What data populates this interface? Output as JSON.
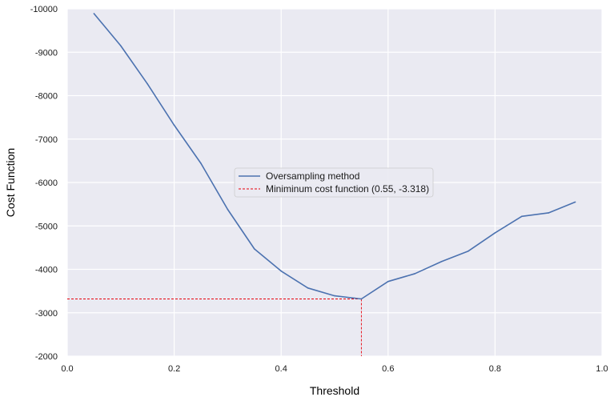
{
  "chart_data": {
    "type": "line",
    "title": "",
    "xlabel": "Threshold",
    "ylabel": "Cost Function",
    "xlim": [
      0.0,
      1.0
    ],
    "ylim": [
      -2000,
      -10000
    ],
    "x_ticks": [
      "0.0",
      "0.2",
      "0.4",
      "0.6",
      "0.8",
      "1.0"
    ],
    "x_tick_values": [
      0.0,
      0.2,
      0.4,
      0.6,
      0.8,
      1.0
    ],
    "y_ticks": [
      "-10000",
      "-9000",
      "-8000",
      "-7000",
      "-6000",
      "-5000",
      "-4000",
      "-3000",
      "-2000"
    ],
    "y_tick_values": [
      -10000,
      -9000,
      -8000,
      -7000,
      -6000,
      -5000,
      -4000,
      -3000,
      -2000
    ],
    "grid": true,
    "legend_position": "center",
    "series": [
      {
        "name": "Oversampling method",
        "color": "#4c72b0",
        "x": [
          0.05,
          0.1,
          0.15,
          0.2,
          0.25,
          0.3,
          0.35,
          0.4,
          0.45,
          0.5,
          0.55,
          0.6,
          0.65,
          0.7,
          0.75,
          0.8,
          0.85,
          0.9,
          0.95
        ],
        "y": [
          -9890,
          -9150,
          -8270,
          -7320,
          -6440,
          -5380,
          -4470,
          -3960,
          -3570,
          -3390,
          -3318,
          -3720,
          -3900,
          -4180,
          -4420,
          -4840,
          -5220,
          -5300,
          -5550
        ]
      }
    ],
    "annotation": {
      "name": "Miniminum cost function (0.55, -3.318)",
      "color": "#e8000b",
      "x": 0.55,
      "y": -3318,
      "style": "dashed"
    },
    "colors": {
      "plot_background": "#eaeaf2",
      "grid": "#ffffff"
    }
  }
}
